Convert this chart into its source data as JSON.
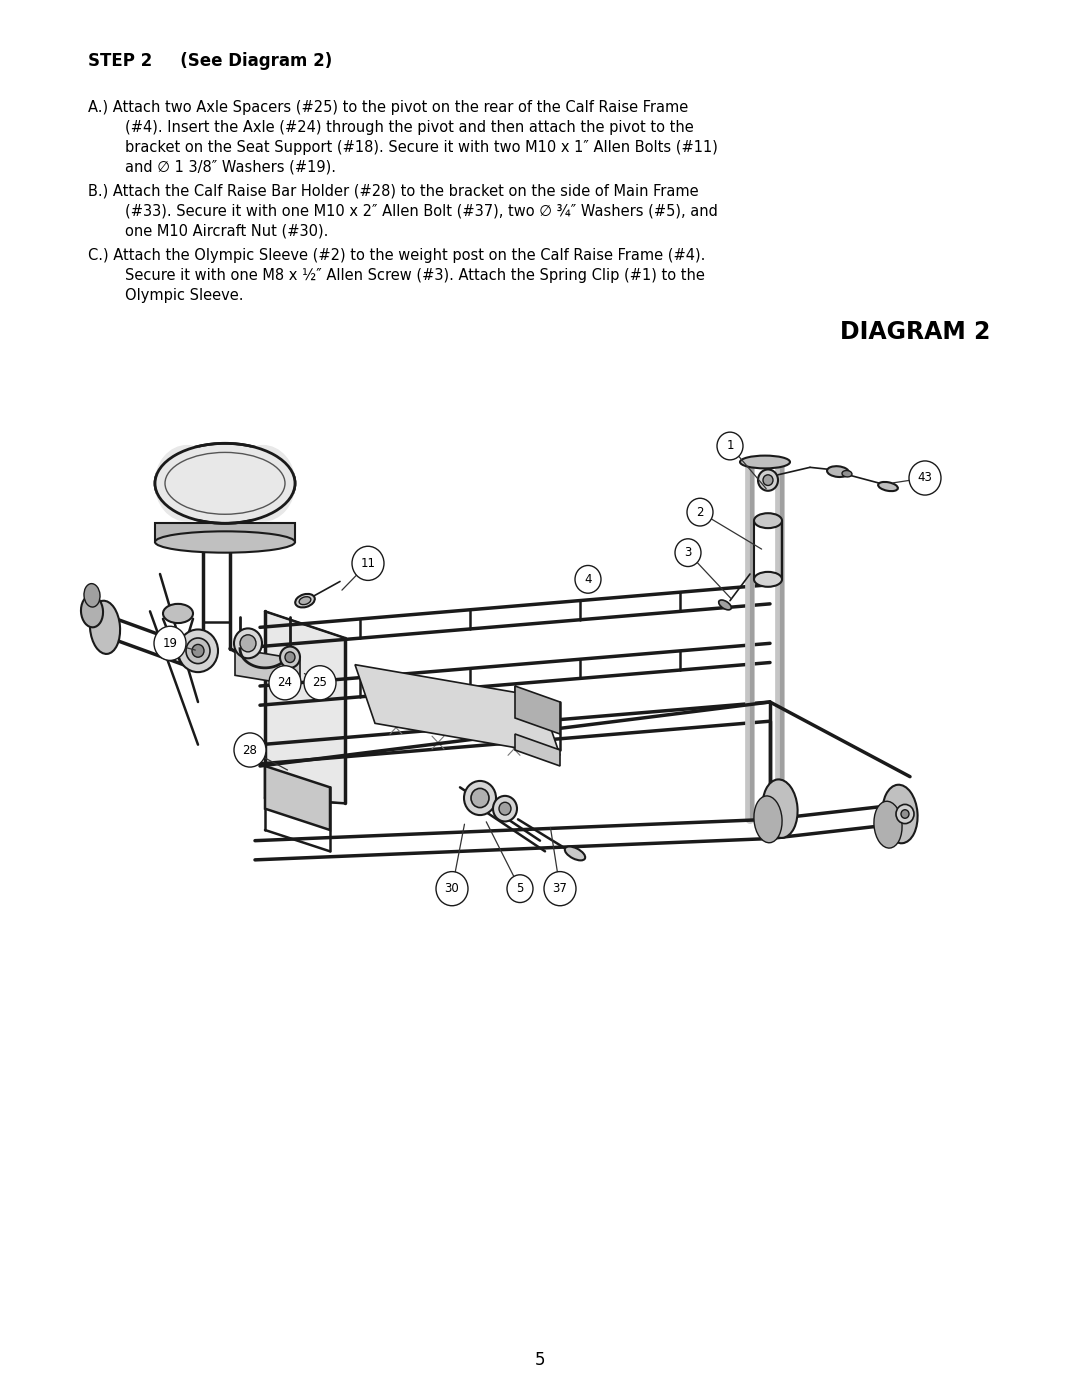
{
  "page_background": "#ffffff",
  "page_number": "5",
  "step_title_bold": "STEP 2",
  "step_title_rest": "   (See Diagram 2)",
  "diagram_title": "DIAGRAM 2",
  "body_fontsize": 10.5,
  "title_fontsize": 12,
  "diagram_title_fontsize": 17,
  "text_color": "#000000",
  "line_color": "#1a1a1a",
  "a_lines": [
    "A.) Attach two Axle Spacers (#25) to the pivot on the rear of the Calf Raise Frame",
    "        (#4). Insert the Axle (#24) through the pivot and then attach the pivot to the",
    "        bracket on the Seat Support (#18). Secure it with two M10 x 1″ Allen Bolts (#11)",
    "        and ∅ 1 3/8″ Washers (#19)."
  ],
  "b_lines": [
    "B.) Attach the Calf Raise Bar Holder (#28) to the bracket on the side of Main Frame",
    "        (#33). Secure it with one M10 x 2″ Allen Bolt (#37), two ∅ ¾″ Washers (#5), and",
    "        one M10 Aircraft Nut (#30)."
  ],
  "c_lines": [
    "C.) Attach the Olympic Sleeve (#2) to the weight post on the Calf Raise Frame (#4).",
    "        Secure it with one M8 x ½″ Allen Screw (#3). Attach the Spring Clip (#1) to the",
    "        Olympic Sleeve."
  ]
}
